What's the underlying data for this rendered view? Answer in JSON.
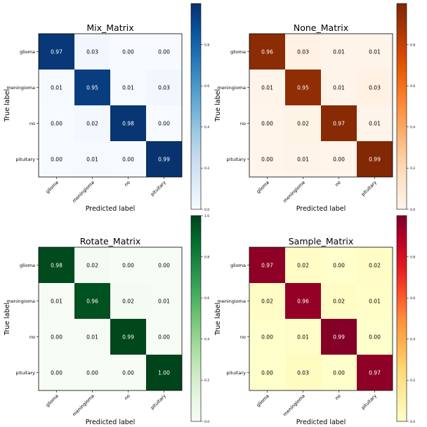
{
  "chart_data": [
    {
      "type": "heatmap",
      "title": "Mix_Matrix",
      "xlabel": "Predicted label",
      "ylabel": "True label",
      "x_categories": [
        "glioma",
        "meningioma",
        "no",
        "pituitary"
      ],
      "y_categories": [
        "glioma",
        "meningioma",
        "no",
        "pituitary"
      ],
      "values": [
        [
          0.97,
          0.03,
          0.0,
          0.0
        ],
        [
          0.01,
          0.95,
          0.01,
          0.03
        ],
        [
          0.0,
          0.02,
          0.98,
          0.0
        ],
        [
          0.0,
          0.01,
          0.0,
          0.99
        ]
      ],
      "colormap": "Blues",
      "colorbar_ticks": [
        "0.8",
        "0.6",
        "0.4",
        "0.2",
        "0.0"
      ]
    },
    {
      "type": "heatmap",
      "title": "None_Matrix",
      "xlabel": "Predicted label",
      "ylabel": "True label",
      "x_categories": [
        "glioma",
        "meningioma",
        "no",
        "pituitary"
      ],
      "y_categories": [
        "glioma",
        "meningioma",
        "no",
        "pituitary"
      ],
      "values": [
        [
          0.96,
          0.03,
          0.01,
          0.01
        ],
        [
          0.01,
          0.95,
          0.01,
          0.03
        ],
        [
          0.0,
          0.02,
          0.97,
          0.01
        ],
        [
          0.0,
          0.01,
          0.0,
          0.99
        ]
      ],
      "colormap": "Oranges",
      "colorbar_ticks": [
        "0.8",
        "0.6",
        "0.4",
        "0.2",
        "0.0"
      ]
    },
    {
      "type": "heatmap",
      "title": "Rotate_Matrix",
      "xlabel": "Predicted label",
      "ylabel": "True label",
      "x_categories": [
        "glioma",
        "meningioma",
        "no",
        "pituitary"
      ],
      "y_categories": [
        "glioma",
        "meningioma",
        "no",
        "pituitary"
      ],
      "values": [
        [
          0.98,
          0.02,
          0.0,
          0.0
        ],
        [
          0.01,
          0.96,
          0.02,
          0.01
        ],
        [
          0.0,
          0.01,
          0.99,
          0.0
        ],
        [
          0.0,
          0.0,
          0.0,
          1.0
        ]
      ],
      "colormap": "Greens",
      "colorbar_ticks": [
        "1.0",
        "0.8",
        "0.6",
        "0.4",
        "0.2",
        "0.0"
      ]
    },
    {
      "type": "heatmap",
      "title": "Sample_Matrix",
      "xlabel": "Predicted label",
      "ylabel": "True label",
      "x_categories": [
        "glioma",
        "meningioma",
        "no",
        "pituitary"
      ],
      "y_categories": [
        "glioma",
        "meningioma",
        "no",
        "pituitary"
      ],
      "values": [
        [
          0.97,
          0.02,
          0.0,
          0.02
        ],
        [
          0.02,
          0.96,
          0.02,
          0.01
        ],
        [
          0.0,
          0.01,
          0.99,
          0.0
        ],
        [
          0.0,
          0.03,
          0.0,
          0.97
        ]
      ],
      "colormap": "YlOrRd",
      "colorbar_ticks": [
        "0.8",
        "0.6",
        "0.4",
        "0.2",
        "0.0"
      ]
    }
  ]
}
